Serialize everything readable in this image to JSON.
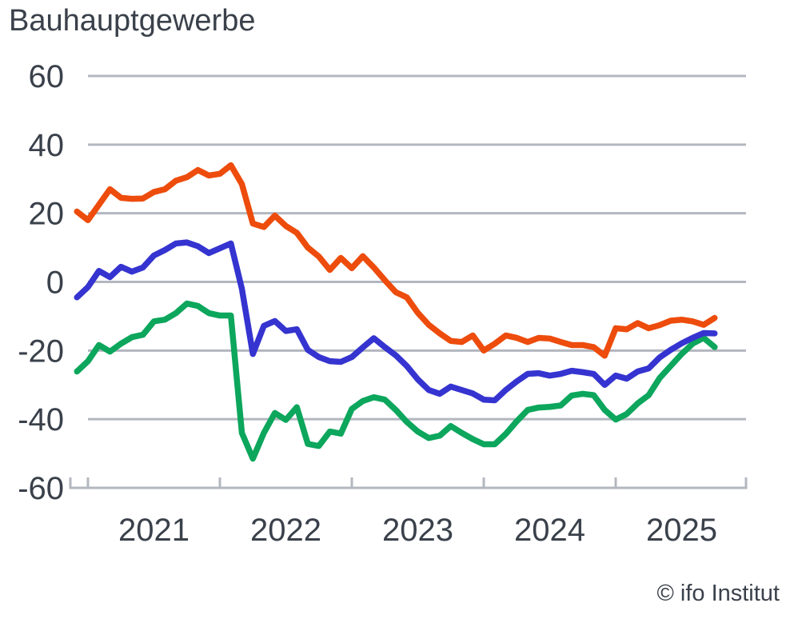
{
  "title": "Bauhauptgewerbe",
  "attribution": "© ifo Institut",
  "colors": {
    "text": "#3A414B",
    "grid": "#B3B7BF",
    "background": "#FFFFFF",
    "series_orange": "#ED4C0C",
    "series_blue": "#3534D0",
    "series_green": "#0CA65C"
  },
  "chart_data": {
    "type": "line",
    "title": "Bauhauptgewerbe",
    "xlabel": "",
    "ylabel": "",
    "ylim": [
      -60,
      60
    ],
    "yticks": [
      60,
      40,
      20,
      0,
      -20,
      -40,
      -60
    ],
    "ytick_labels": [
      "60",
      "40",
      "20",
      "0",
      "-20",
      "-40",
      "-60"
    ],
    "xtick_labels": [
      "2021",
      "2022",
      "2023",
      "2024",
      "2025"
    ],
    "x_unit": "month",
    "x_start": "2020-12",
    "x_end": "2025-10",
    "grid": "horizontal",
    "legend": "none",
    "series": [
      {
        "name": "green",
        "color": "#0CA65C",
        "values": [
          -26.1,
          -23.1,
          -18.4,
          -20.3,
          -18,
          -16.1,
          -15.4,
          -11.5,
          -11,
          -9.1,
          -6.3,
          -7,
          -9.1,
          -9.8,
          -9.8,
          -44,
          -51.5,
          -44,
          -38.2,
          -40.2,
          -36.5,
          -47.2,
          -47.8,
          -43.6,
          -44.2,
          -37,
          -34.7,
          -33.6,
          -34.3,
          -37.3,
          -40.8,
          -43.6,
          -45.5,
          -44.8,
          -42,
          -44,
          -45.8,
          -47.3,
          -47.3,
          -44.3,
          -40.6,
          -37.3,
          -36.6,
          -36.4,
          -36,
          -33.1,
          -32.6,
          -33,
          -37.3,
          -40.1,
          -38.5,
          -35.4,
          -33,
          -28,
          -24.5,
          -21,
          -18,
          -16.3,
          -19
        ]
      },
      {
        "name": "blue",
        "color": "#3534D0",
        "values": [
          -4.5,
          -1.5,
          3.2,
          1.4,
          4.4,
          3.0,
          4.2,
          7.7,
          9.3,
          11.2,
          11.5,
          10.4,
          8.4,
          9.8,
          11.2,
          -2,
          -21,
          -12.8,
          -11.4,
          -14.3,
          -13.8,
          -19.8,
          -21.9,
          -23.1,
          -23.3,
          -21.9,
          -19.1,
          -16.4,
          -19,
          -21.4,
          -24.5,
          -28.4,
          -31.5,
          -32.6,
          -30.5,
          -31.5,
          -32.5,
          -34.3,
          -34.5,
          -31.5,
          -29,
          -26.8,
          -26.6,
          -27.3,
          -26.8,
          -25.9,
          -26.3,
          -26.8,
          -30,
          -27.3,
          -28.2,
          -26.1,
          -25.2,
          -22,
          -19.8,
          -17.9,
          -16.3,
          -14.9,
          -15
        ]
      },
      {
        "name": "orange",
        "color": "#ED4C0C",
        "values": [
          20.5,
          18,
          22.5,
          27,
          24.5,
          24.2,
          24.3,
          26.2,
          27,
          29.5,
          30.5,
          32.6,
          31,
          31.5,
          34,
          28.5,
          17,
          16,
          19.3,
          16.3,
          14.3,
          10,
          7.4,
          3.5,
          7,
          4,
          7.5,
          4.2,
          0.5,
          -3,
          -4.5,
          -9,
          -12.5,
          -15,
          -17.2,
          -17.5,
          -15.6,
          -20,
          -18,
          -15.6,
          -16.3,
          -17.5,
          -16.3,
          -16.5,
          -17.5,
          -18.4,
          -18.4,
          -19,
          -21.5,
          -13.5,
          -13.8,
          -12,
          -13.5,
          -12.6,
          -11.3,
          -11,
          -11.5,
          -12.5,
          -10.5
        ]
      }
    ]
  }
}
